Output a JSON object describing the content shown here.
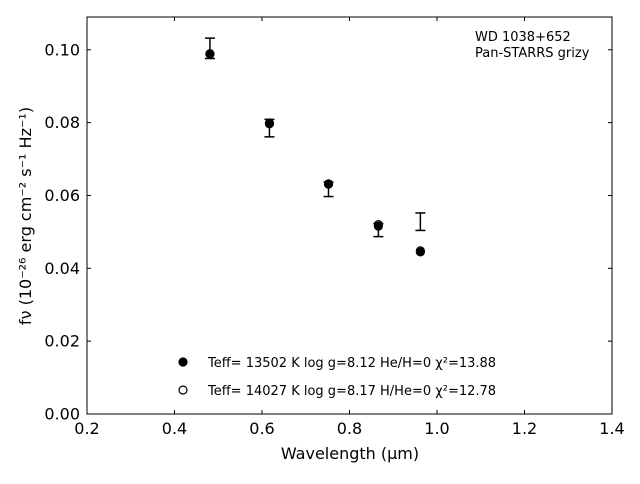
{
  "chart_data": {
    "type": "scatter",
    "annotation": [
      "WD 1038+652",
      "Pan-STARRS grizy"
    ],
    "xlabel": "Wavelength (μm)",
    "ylabel": "fν (10⁻²⁶ erg cm⁻² s⁻¹ Hz⁻¹)",
    "xlim": [
      0.2,
      1.4
    ],
    "ylim": [
      0.0,
      0.109
    ],
    "xticks": [
      0.2,
      0.4,
      0.6,
      0.8,
      1.0,
      1.2,
      1.4
    ],
    "xtick_labels": [
      "0.2",
      "0.4",
      "0.6",
      "0.8",
      "1.0",
      "1.2",
      "1.4"
    ],
    "yticks": [
      0.0,
      0.02,
      0.04,
      0.06,
      0.08,
      0.1
    ],
    "ytick_labels": [
      "0.00",
      "0.02",
      "0.04",
      "0.06",
      "0.08",
      "0.10"
    ],
    "grid": false,
    "legend_position": "bottom-center",
    "observed": {
      "x": [
        0.481,
        0.617,
        0.752,
        0.866,
        0.962
      ],
      "y": [
        0.1004,
        0.0785,
        0.0617,
        0.0505,
        0.0528
      ],
      "yerr": [
        0.0028,
        0.0024,
        0.002,
        0.0018,
        0.0024
      ]
    },
    "series": [
      {
        "name": "Teff= 13502 K  log g=8.12  He/H=0  χ²=13.88",
        "marker": "filled-circle",
        "x": [
          0.481,
          0.617,
          0.752,
          0.866,
          0.962
        ],
        "y": [
          0.0988,
          0.0797,
          0.0631,
          0.0516,
          0.0445
        ]
      },
      {
        "name": "Teff= 14027 K  log g=8.17  H/He=0  χ²=12.78",
        "marker": "open-circle",
        "x": [
          0.481,
          0.617,
          0.752,
          0.866,
          0.962
        ],
        "y": [
          0.0989,
          0.0799,
          0.0632,
          0.052,
          0.0448
        ]
      }
    ]
  }
}
